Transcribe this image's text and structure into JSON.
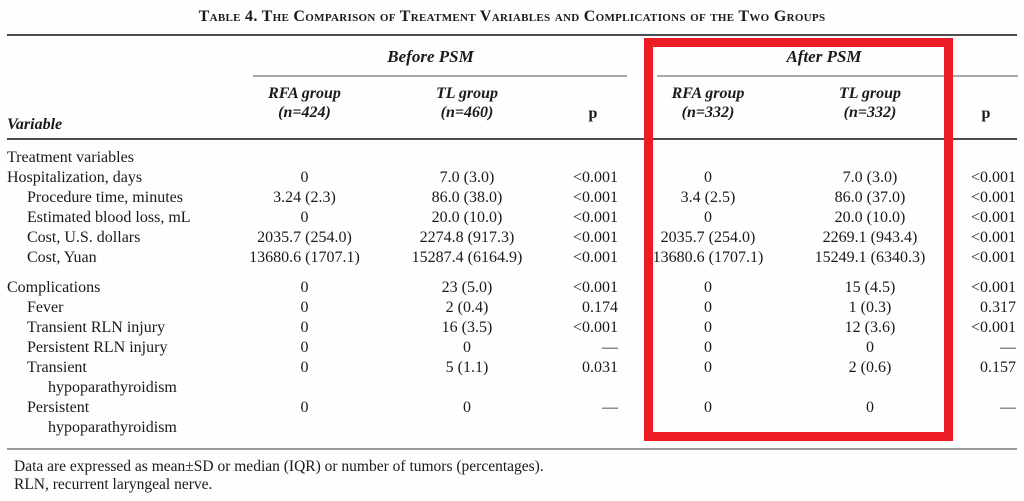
{
  "title": "Table 4. The Comparison of Treatment Variables and Complications of the Two Groups",
  "table": {
    "group_headers": {
      "before": "Before PSM",
      "after": "After PSM"
    },
    "columns": {
      "variable": "Variable",
      "before_rfa_group": "RFA group",
      "before_rfa_n": "(n=424)",
      "before_tl_group": "TL group",
      "before_tl_n": "(n=460)",
      "before_p": "p",
      "after_rfa_group": "RFA group",
      "after_rfa_n": "(n=332)",
      "after_tl_group": "TL group",
      "after_tl_n": "(n=332)",
      "after_p": "p"
    },
    "rows": [
      {
        "label": "Treatment variables",
        "indent": 0,
        "cells": [
          "",
          "",
          "",
          "",
          "",
          ""
        ]
      },
      {
        "label": "Hospitalization, days",
        "indent": 0,
        "cells": [
          "0",
          "7.0 (3.0)",
          "<0.001",
          "0",
          "7.0 (3.0)",
          "<0.001"
        ]
      },
      {
        "label": "Procedure time, minutes",
        "indent": 1,
        "cells": [
          "3.24 (2.3)",
          "86.0 (38.0)",
          "<0.001",
          "3.4 (2.5)",
          "86.0 (37.0)",
          "<0.001"
        ]
      },
      {
        "label": "Estimated blood loss, mL",
        "indent": 1,
        "cells": [
          "0",
          "20.0 (10.0)",
          "<0.001",
          "0",
          "20.0 (10.0)",
          "<0.001"
        ]
      },
      {
        "label": "Cost, U.S. dollars",
        "indent": 1,
        "cells": [
          "2035.7 (254.0)",
          "2274.8 (917.3)",
          "<0.001",
          "2035.7 (254.0)",
          "2269.1 (943.4)",
          "<0.001"
        ]
      },
      {
        "label": "Cost, Yuan",
        "indent": 1,
        "cells": [
          "13680.6 (1707.1)",
          "15287.4 (6164.9)",
          "<0.001",
          "13680.6 (1707.1)",
          "15249.1 (6340.3)",
          "<0.001"
        ]
      },
      {
        "label": "Complications",
        "indent": 0,
        "gap": true,
        "cells": [
          "0",
          "23 (5.0)",
          "<0.001",
          "0",
          "15 (4.5)",
          "<0.001"
        ]
      },
      {
        "label": "Fever",
        "indent": 1,
        "cells": [
          "0",
          "2 (0.4)",
          "0.174",
          "0",
          "1 (0.3)",
          "0.317"
        ]
      },
      {
        "label": "Transient RLN injury",
        "indent": 1,
        "cells": [
          "0",
          "16 (3.5)",
          "<0.001",
          "0",
          "12 (3.6)",
          "<0.001"
        ]
      },
      {
        "label": "Persistent RLN injury",
        "indent": 1,
        "cells": [
          "0",
          "0",
          "—",
          "0",
          "0",
          "—"
        ]
      },
      {
        "label": "Transient",
        "label2": "hypoparathyroidism",
        "indent": 1,
        "cells": [
          "0",
          "5 (1.1)",
          "0.031",
          "0",
          "2 (0.6)",
          "0.157"
        ]
      },
      {
        "label": "Persistent",
        "label2": "hypoparathyroidism",
        "indent": 1,
        "cells": [
          "0",
          "0",
          "—",
          "0",
          "0",
          "—"
        ]
      }
    ]
  },
  "footnotes": {
    "line1": "Data are expressed as mean±SD or median (IQR) or number of tumors (percentages).",
    "line2": "RLN, recurrent laryngeal nerve."
  },
  "annotation": {
    "highlight_color": "#ed1c24"
  }
}
